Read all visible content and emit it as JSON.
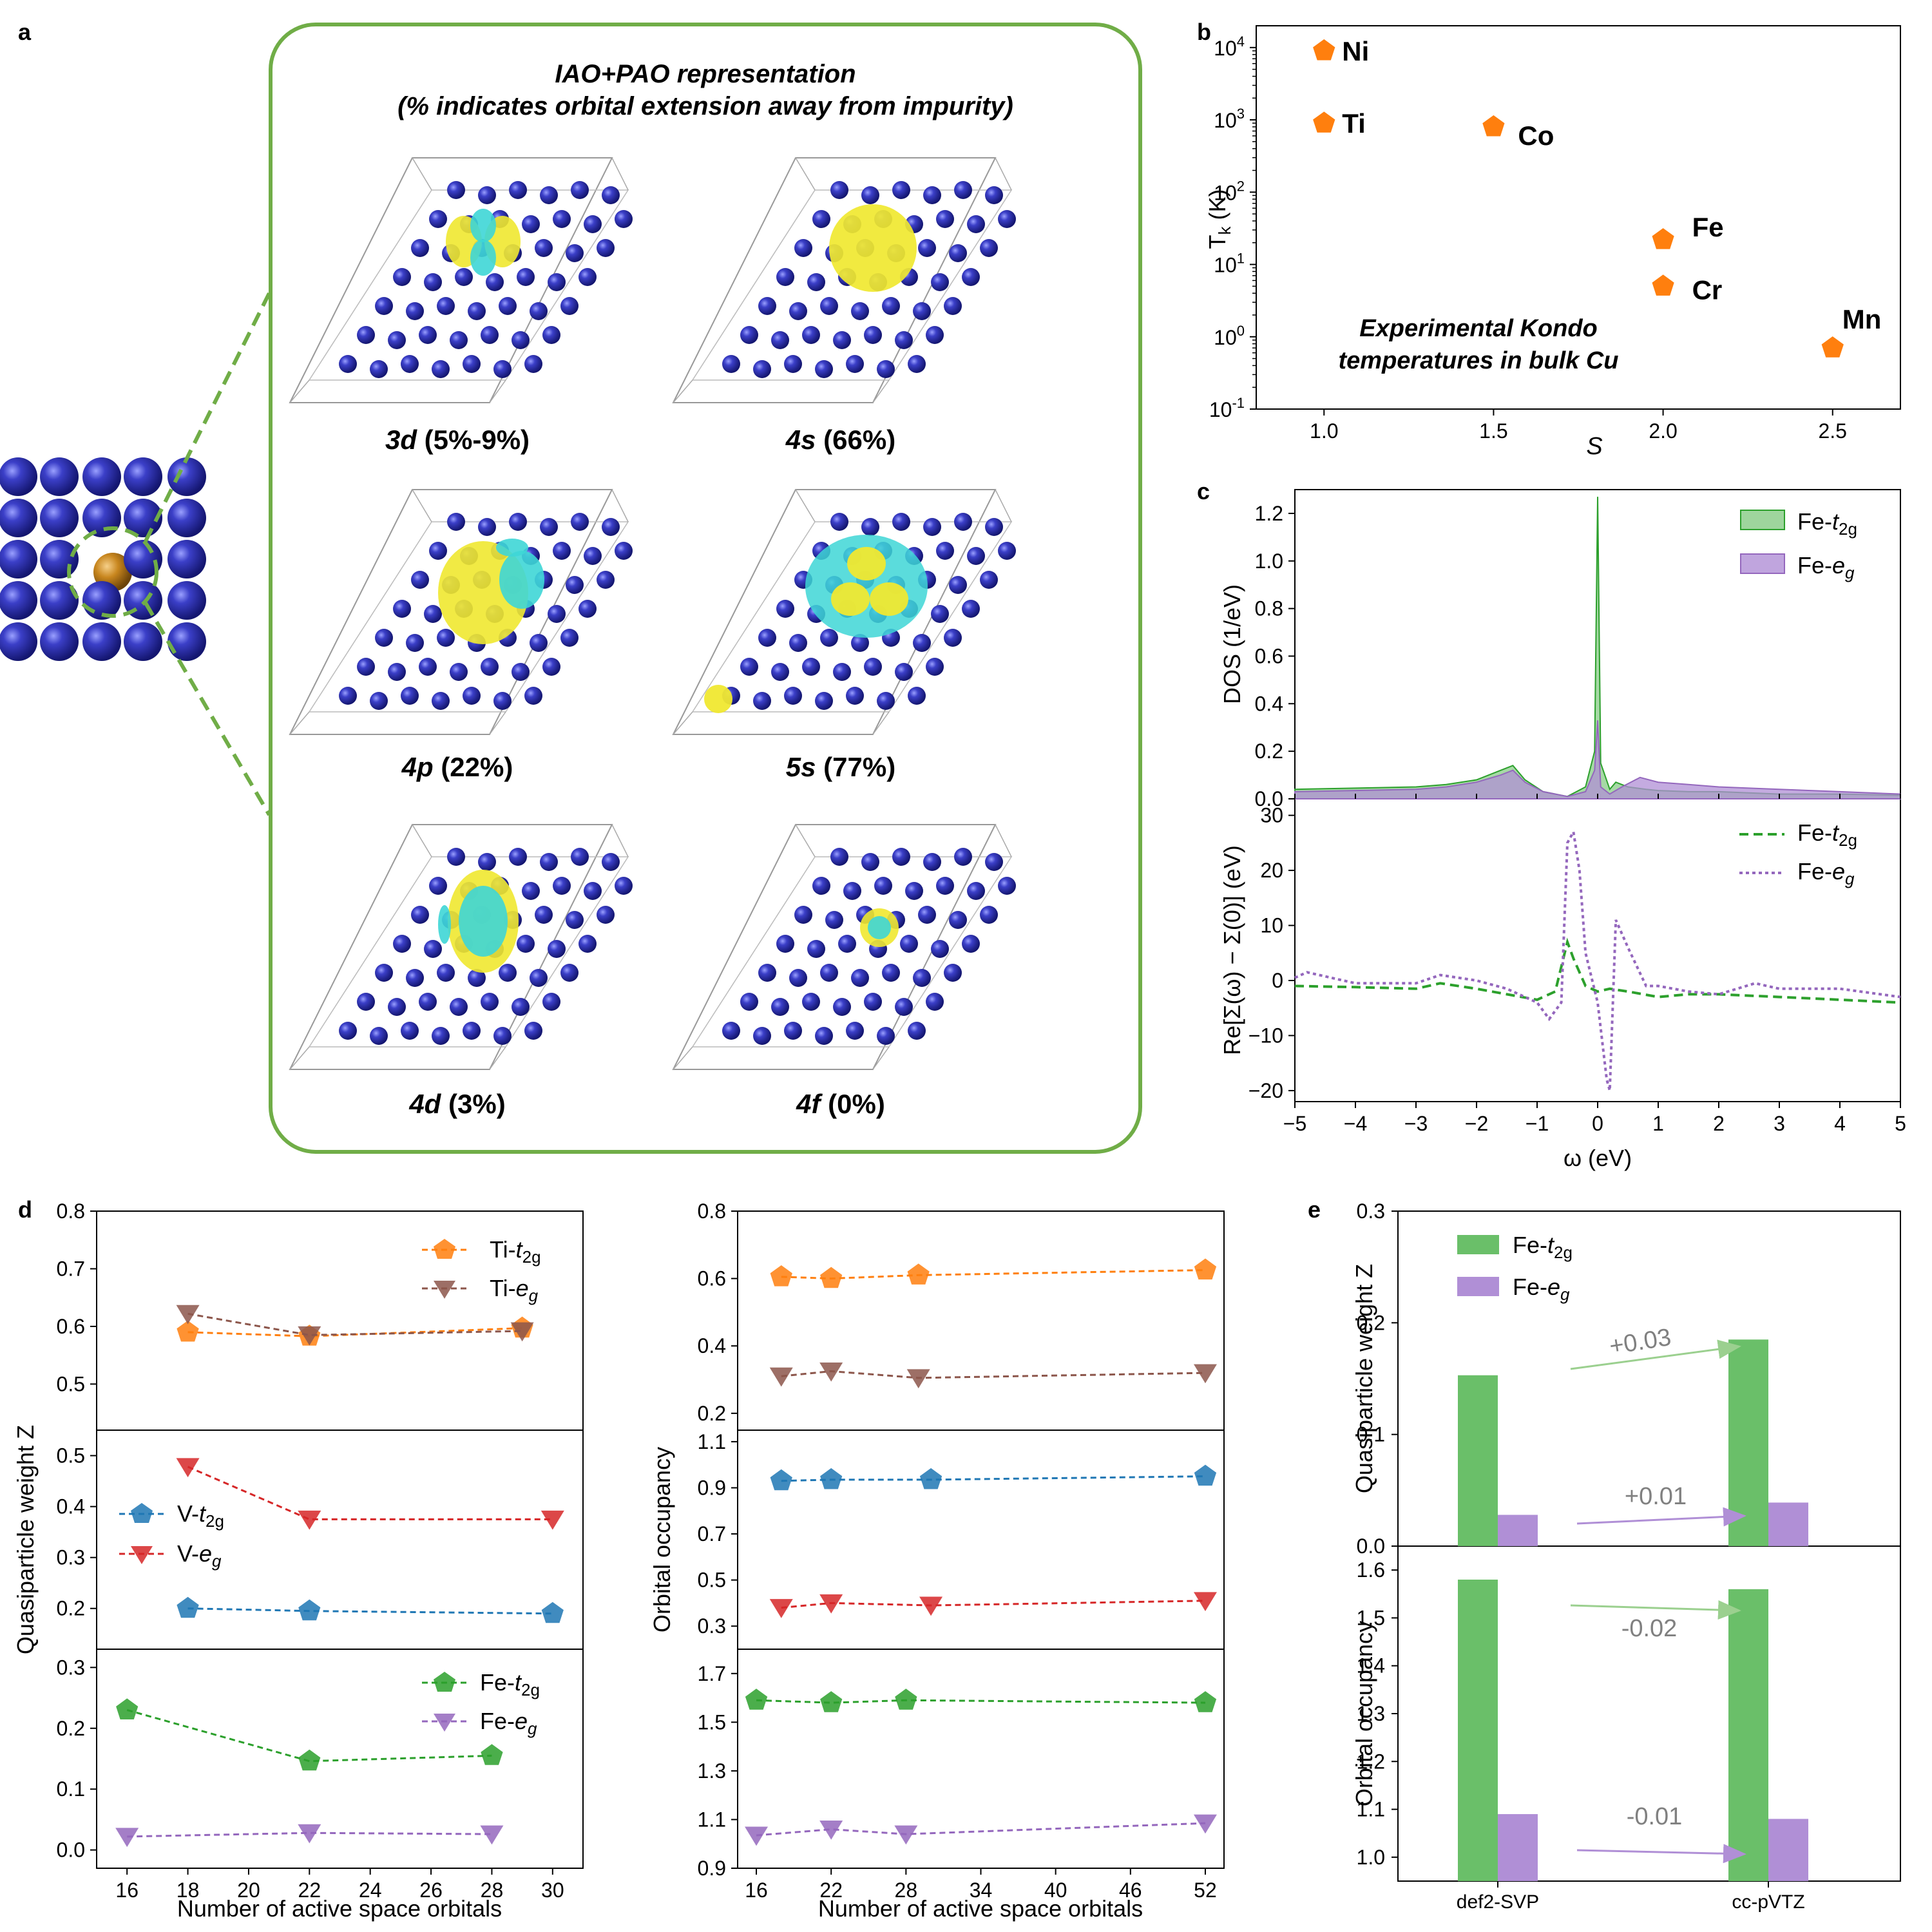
{
  "panel_labels": {
    "a": "a",
    "b": "b",
    "c": "c",
    "d": "d",
    "e": "e"
  },
  "colors": {
    "blue_atom": "#3b3fc8",
    "frame_green": "#70ad47",
    "orange": "#ff7f0e",
    "brown": "#8c564b",
    "blue": "#1f77b4",
    "red": "#d62728",
    "green": "#2ca02c",
    "purple": "#9467bd",
    "bar_green": "#6abf69",
    "bar_purple": "#b08fd6",
    "iso_yellow": "#f0e830",
    "iso_cyan": "#3ed6d6",
    "fe_atom": "#c8861e"
  },
  "panel_a": {
    "title_line1": "IAO+PAO representation",
    "title_line2": "(% indicates orbital extension away from impurity)",
    "orbitals": [
      {
        "name": "3d",
        "pct": "(5%-9%)"
      },
      {
        "name": "4s",
        "pct": "(66%)"
      },
      {
        "name": "4p",
        "pct": "(22%)"
      },
      {
        "name": "5s",
        "pct": "(77%)"
      },
      {
        "name": "4d",
        "pct": "(3%)"
      },
      {
        "name": "4f",
        "pct": "(0%)"
      }
    ]
  },
  "chart_data": [
    {
      "id": "b",
      "type": "scatter",
      "xlabel": "S",
      "ylabel": "T_k (K)",
      "yscale": "log",
      "xlim": [
        0.8,
        2.7
      ],
      "ylim": [
        0.1,
        20000
      ],
      "xticks": [
        "1.0",
        "1.5",
        "2.0",
        "2.5"
      ],
      "yticks": [
        "10^-1",
        "10^0",
        "10^1",
        "10^2",
        "10^3",
        "10^4"
      ],
      "points": [
        {
          "label": "Ni",
          "x": 1.0,
          "y": 9000
        },
        {
          "label": "Ti",
          "x": 1.0,
          "y": 900
        },
        {
          "label": "Co",
          "x": 1.5,
          "y": 800
        },
        {
          "label": "Fe",
          "x": 2.0,
          "y": 22
        },
        {
          "label": "Cr",
          "x": 2.0,
          "y": 5
        },
        {
          "label": "Mn",
          "x": 2.5,
          "y": 0.7
        }
      ],
      "annotation_line1": "Experimental Kondo",
      "annotation_line2": "temperatures in bulk Cu"
    },
    {
      "id": "c_top",
      "type": "area",
      "ylabel": "DOS (1/eV)",
      "xlim": [
        -5,
        5
      ],
      "ylim": [
        0,
        1.3
      ],
      "yticks": [
        "0.0",
        "0.2",
        "0.4",
        "0.6",
        "0.8",
        "1.0",
        "1.2"
      ],
      "series": [
        {
          "name": "Fe-t2g",
          "x": [
            -5,
            -4,
            -3,
            -2.5,
            -2,
            -1.6,
            -1.4,
            -1.2,
            -0.9,
            -0.5,
            -0.2,
            -0.05,
            0,
            0.05,
            0.2,
            0.3,
            0.5,
            0.8,
            1,
            1.5,
            2,
            3,
            4,
            5
          ],
          "values": [
            0.04,
            0.045,
            0.05,
            0.06,
            0.08,
            0.12,
            0.14,
            0.08,
            0.03,
            0.01,
            0.05,
            0.2,
            1.27,
            0.15,
            0.04,
            0.07,
            0.05,
            0.04,
            0.035,
            0.03,
            0.03,
            0.02,
            0.02,
            0.015
          ]
        },
        {
          "name": "Fe-eg",
          "x": [
            -5,
            -4,
            -3,
            -2.5,
            -2,
            -1.6,
            -1.4,
            -1.2,
            -0.9,
            -0.5,
            -0.2,
            -0.05,
            0,
            0.05,
            0.2,
            0.4,
            0.7,
            1,
            1.5,
            2,
            3,
            4,
            5
          ],
          "values": [
            0.03,
            0.035,
            0.04,
            0.05,
            0.07,
            0.1,
            0.12,
            0.07,
            0.03,
            0.01,
            0.03,
            0.12,
            0.33,
            0.05,
            0.02,
            0.05,
            0.09,
            0.07,
            0.06,
            0.05,
            0.04,
            0.03,
            0.02
          ]
        }
      ]
    },
    {
      "id": "c_bottom",
      "type": "line",
      "ylabel": "Re[Σ(ω) − Σ(0)] (eV)",
      "xlabel": "ω (eV)",
      "xlim": [
        -5,
        5
      ],
      "ylim": [
        -22,
        33
      ],
      "xticks": [
        "−5",
        "−4",
        "−3",
        "−2",
        "−1",
        "0",
        "1",
        "2",
        "3",
        "4",
        "5"
      ],
      "yticks": [
        "−20",
        "−10",
        "0",
        "10",
        "20",
        "30"
      ],
      "series": [
        {
          "name": "Fe-t2g",
          "x": [
            -5,
            -4,
            -3,
            -2.6,
            -2,
            -1.5,
            -1,
            -0.7,
            -0.5,
            -0.4,
            -0.2,
            0,
            0.2,
            0.5,
            1,
            1.5,
            2,
            3,
            4,
            5
          ],
          "values": [
            -1,
            -1.2,
            -1.5,
            -0.5,
            -1.5,
            -2.5,
            -3.5,
            -2,
            7,
            4,
            -1,
            -2,
            -1.5,
            -2,
            -3,
            -2.5,
            -2.5,
            -3,
            -3.5,
            -4
          ]
        },
        {
          "name": "Fe-eg",
          "x": [
            -5,
            -4.8,
            -4,
            -3,
            -2.6,
            -2,
            -1.5,
            -1,
            -0.8,
            -0.6,
            -0.5,
            -0.4,
            -0.3,
            -0.2,
            0,
            0.15,
            0.2,
            0.3,
            0.5,
            0.8,
            1,
            1.5,
            2,
            2.6,
            3,
            4,
            5
          ],
          "values": [
            0.5,
            1.5,
            -0.5,
            -0.5,
            1,
            0,
            -1.5,
            -4,
            -7,
            -4,
            25,
            27,
            20,
            5,
            -4,
            -18,
            -20,
            11,
            6,
            -1,
            -1,
            -2,
            -2.5,
            -0.5,
            -1.5,
            -1.5,
            -3
          ]
        }
      ]
    },
    {
      "id": "d_left",
      "type": "line",
      "xlabel": "Number of active space orbitals",
      "ylabel": "Quasiparticle weight Z",
      "xticks": [
        "16",
        "18",
        "20",
        "22",
        "24",
        "26",
        "28",
        "30"
      ],
      "subplots": [
        {
          "ylim": [
            0.42,
            0.8
          ],
          "yticks": [
            "0.5",
            "0.6",
            "0.7",
            "0.8"
          ],
          "series": [
            {
              "name": "Ti-t2g",
              "x": [
                18,
                22,
                29
              ],
              "values": [
                0.59,
                0.583,
                0.597
              ]
            },
            {
              "name": "Ti-eg",
              "x": [
                18,
                22,
                29
              ],
              "values": [
                0.622,
                0.585,
                0.592
              ]
            }
          ]
        },
        {
          "ylim": [
            0.12,
            0.55
          ],
          "yticks": [
            "0.2",
            "0.3",
            "0.4",
            "0.5"
          ],
          "series": [
            {
              "name": "V-t2g",
              "x": [
                18,
                22,
                30
              ],
              "values": [
                0.2,
                0.195,
                0.19
              ]
            },
            {
              "name": "V-eg",
              "x": [
                18,
                22,
                30
              ],
              "values": [
                0.478,
                0.375,
                0.375
              ]
            }
          ]
        },
        {
          "ylim": [
            -0.03,
            0.33
          ],
          "yticks": [
            "0.0",
            "0.1",
            "0.2",
            "0.3"
          ],
          "series": [
            {
              "name": "Fe-t2g",
              "x": [
                16,
                22,
                28
              ],
              "values": [
                0.23,
                0.146,
                0.155
              ]
            },
            {
              "name": "Fe-eg",
              "x": [
                16,
                22,
                28
              ],
              "values": [
                0.022,
                0.028,
                0.026
              ]
            }
          ]
        }
      ]
    },
    {
      "id": "d_right",
      "type": "line",
      "xlabel": "Number of active space orbitals",
      "ylabel": "Orbital occupancy",
      "xticks": [
        "16",
        "22",
        "28",
        "34",
        "40",
        "46",
        "52"
      ],
      "subplots": [
        {
          "ylim": [
            0.15,
            0.8
          ],
          "yticks": [
            "0.2",
            "0.4",
            "0.6",
            "0.8"
          ],
          "series": [
            {
              "name": "Ti-t2g",
              "x": [
                18,
                22,
                29,
                52
              ],
              "values": [
                0.605,
                0.6,
                0.61,
                0.625
              ]
            },
            {
              "name": "Ti-eg",
              "x": [
                18,
                22,
                29,
                52
              ],
              "values": [
                0.31,
                0.325,
                0.305,
                0.32
              ]
            }
          ]
        },
        {
          "ylim": [
            0.2,
            1.15
          ],
          "yticks": [
            "0.3",
            "0.5",
            "0.7",
            "0.9",
            "1.1"
          ],
          "series": [
            {
              "name": "V-t2g",
              "x": [
                18,
                22,
                30,
                52
              ],
              "values": [
                0.93,
                0.935,
                0.935,
                0.95
              ]
            },
            {
              "name": "V-eg",
              "x": [
                18,
                22,
                30,
                52
              ],
              "values": [
                0.38,
                0.4,
                0.39,
                0.41
              ]
            }
          ]
        },
        {
          "ylim": [
            0.9,
            1.8
          ],
          "yticks": [
            "0.9",
            "1.1",
            "1.3",
            "1.5",
            "1.7"
          ],
          "series": [
            {
              "name": "Fe-t2g",
              "x": [
                16,
                22,
                28,
                52
              ],
              "values": [
                1.59,
                1.58,
                1.59,
                1.58
              ]
            },
            {
              "name": "Fe-eg",
              "x": [
                16,
                22,
                28,
                52
              ],
              "values": [
                1.035,
                1.06,
                1.04,
                1.085
              ]
            }
          ]
        }
      ]
    },
    {
      "id": "e",
      "type": "bar",
      "categories": [
        "def2-SVP",
        "cc-pVTZ"
      ],
      "subplots": [
        {
          "ylabel": "Quasiparticle weight Z",
          "ylim": [
            0,
            0.3
          ],
          "yticks": [
            "0.0",
            "0.1",
            "0.2",
            "0.3"
          ],
          "series": [
            {
              "name": "Fe-t2g",
              "values": [
                0.153,
                0.185
              ]
            },
            {
              "name": "Fe-eg",
              "values": [
                0.028,
                0.039
              ]
            }
          ],
          "deltas": [
            "+0.03",
            "+0.01"
          ]
        },
        {
          "ylabel": "Orbital occupancy",
          "ylim": [
            0.95,
            1.65
          ],
          "yticks": [
            "1.0",
            "1.1",
            "1.2",
            "1.3",
            "1.4",
            "1.5",
            "1.6"
          ],
          "series": [
            {
              "name": "Fe-t2g",
              "values": [
                1.58,
                1.56
              ]
            },
            {
              "name": "Fe-eg",
              "values": [
                1.09,
                1.08
              ]
            }
          ],
          "deltas": [
            "-0.02",
            "-0.01"
          ]
        }
      ]
    }
  ],
  "legends": {
    "fe_t2g": "Fe-t₂g",
    "fe_eg": "Fe-eg",
    "ti_t2g": "Ti-t",
    "ti_eg": "Ti-e",
    "v_t2g": "V-t",
    "v_eg": "V-e"
  }
}
